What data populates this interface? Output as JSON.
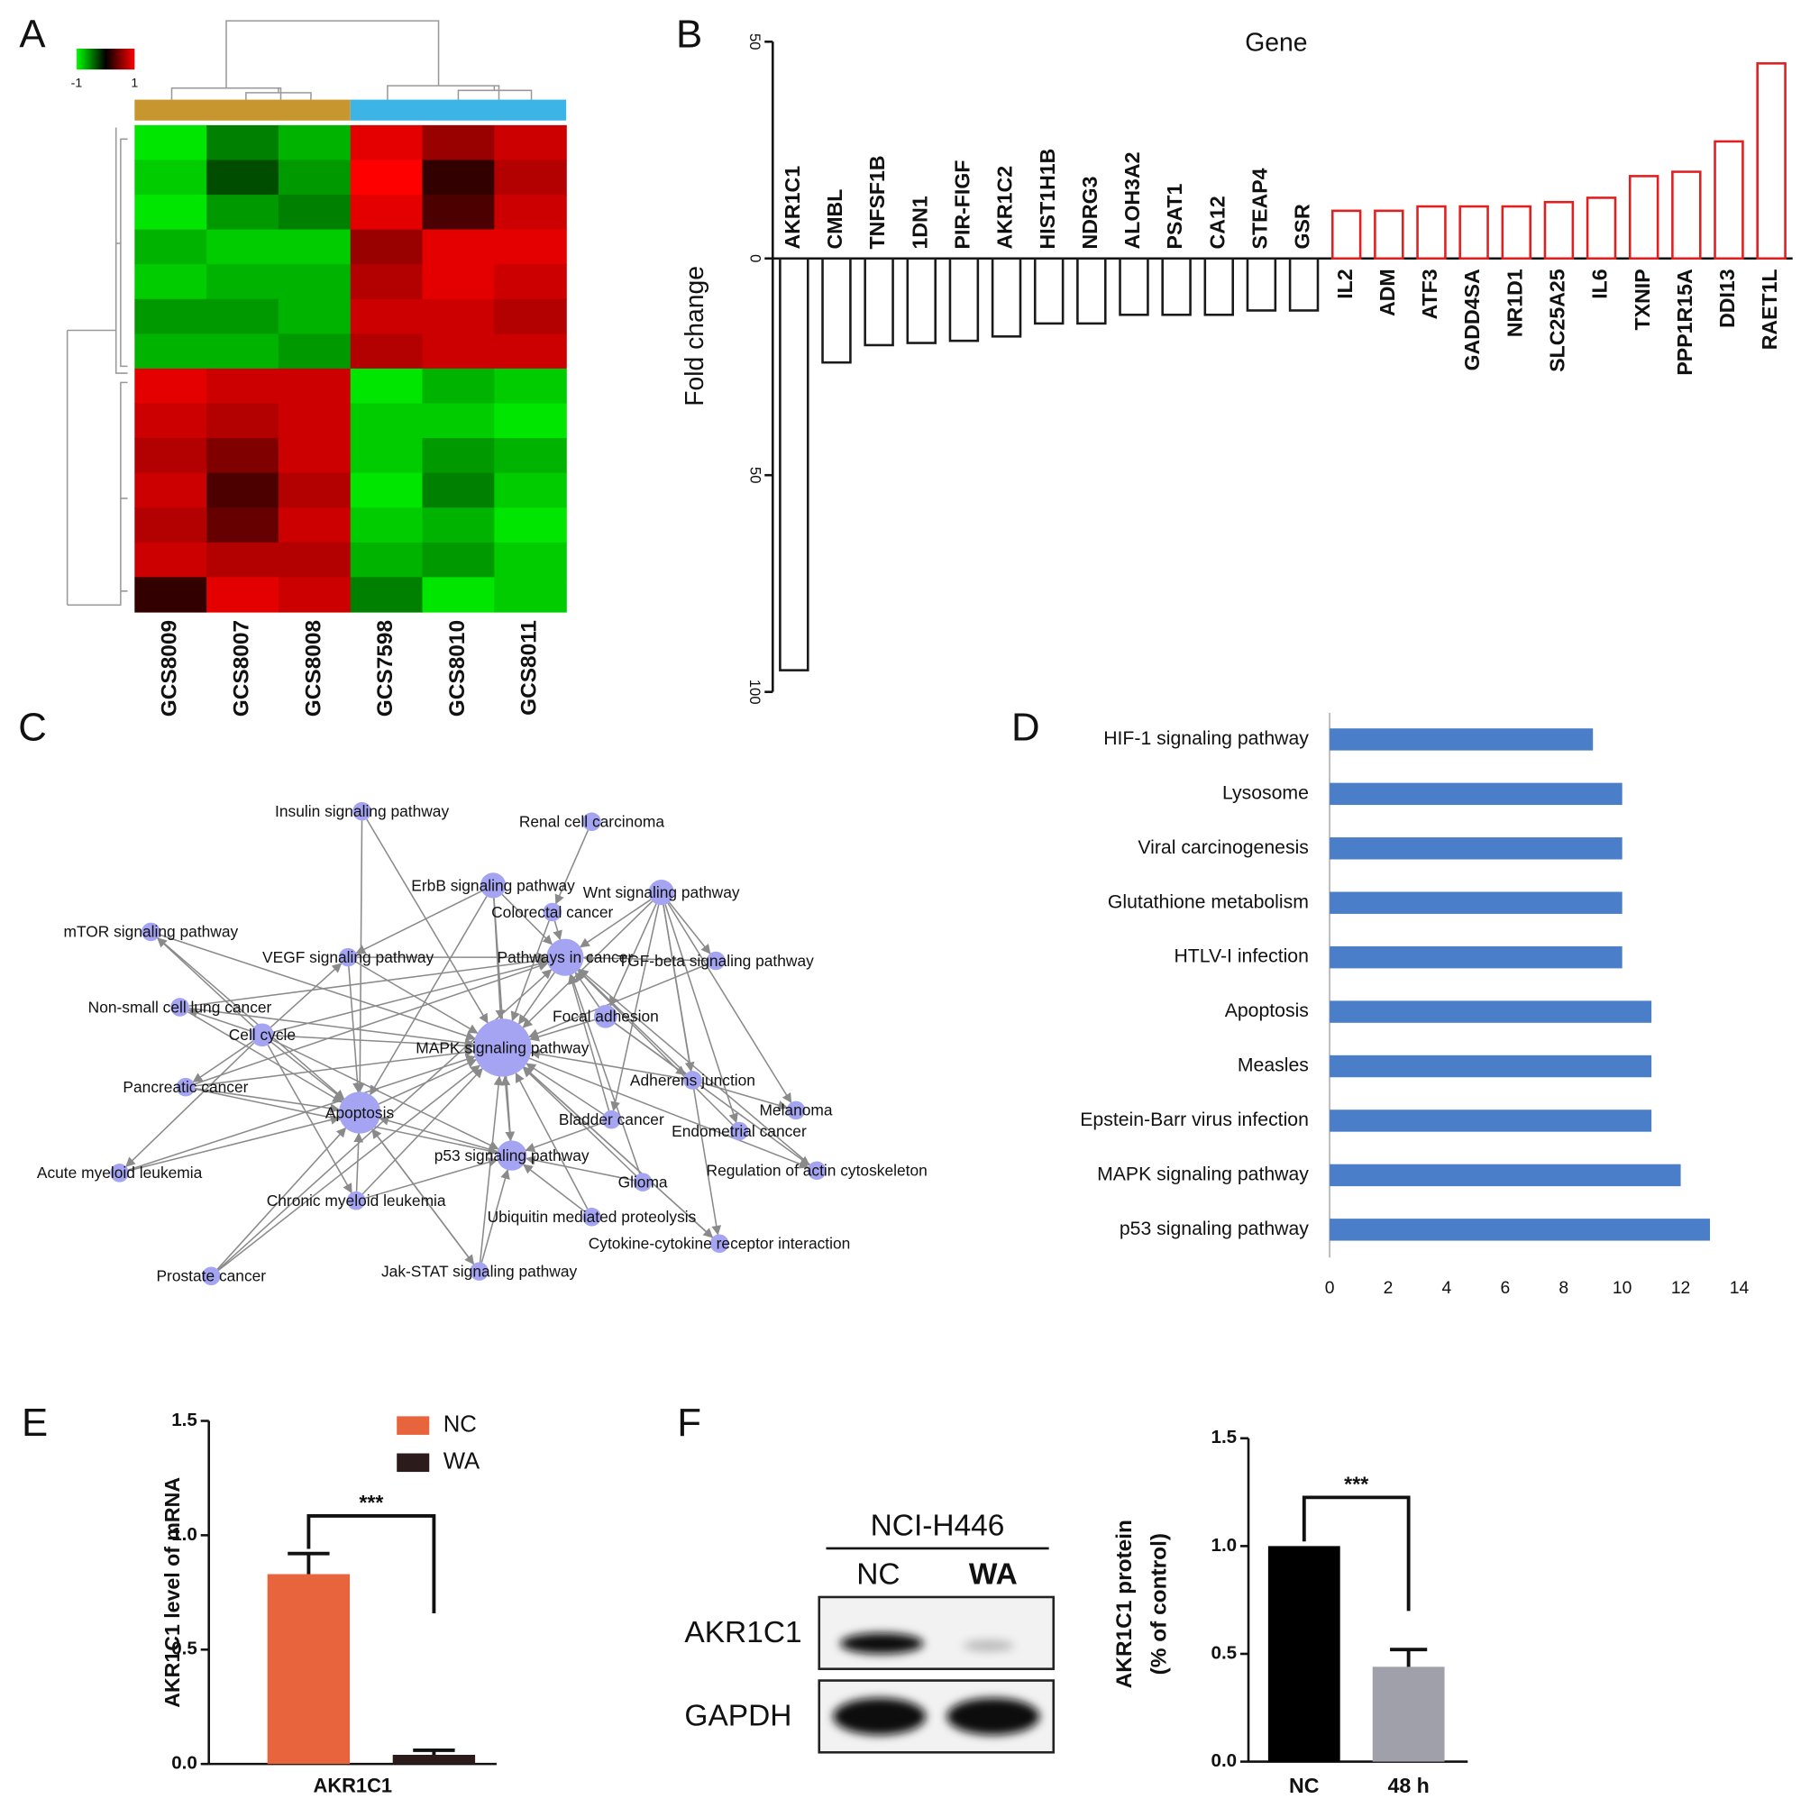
{
  "chart_data": [
    {
      "panel": "A",
      "type": "heatmap",
      "columns": [
        "GCS8009",
        "GCS8007",
        "GCS8008",
        "GCS7598",
        "GCS8010",
        "GCS8011"
      ],
      "values": [
        [
          -0.9,
          -0.5,
          -0.7,
          0.9,
          0.6,
          0.8
        ],
        [
          -0.8,
          -0.3,
          -0.6,
          1,
          0.2,
          0.7
        ],
        [
          -0.9,
          -0.6,
          -0.5,
          0.9,
          0.3,
          0.8
        ],
        [
          -0.7,
          -0.8,
          -0.8,
          0.6,
          0.9,
          0.9
        ],
        [
          -0.8,
          -0.7,
          -0.7,
          0.7,
          0.9,
          0.8
        ],
        [
          -0.6,
          -0.6,
          -0.7,
          0.8,
          0.8,
          0.7
        ],
        [
          -0.7,
          -0.7,
          -0.6,
          0.7,
          0.8,
          0.8
        ],
        [
          0.9,
          0.8,
          0.8,
          -0.9,
          -0.7,
          -0.8
        ],
        [
          0.8,
          0.7,
          0.8,
          -0.8,
          -0.8,
          -0.9
        ],
        [
          0.7,
          0.5,
          0.8,
          -0.8,
          -0.6,
          -0.7
        ],
        [
          0.8,
          0.3,
          0.7,
          -0.9,
          -0.5,
          -0.8
        ],
        [
          0.7,
          0.4,
          0.8,
          -0.8,
          -0.7,
          -0.9
        ],
        [
          0.8,
          0.7,
          0.7,
          -0.7,
          -0.6,
          -0.8
        ],
        [
          0.2,
          0.9,
          0.8,
          -0.5,
          -0.9,
          -0.8
        ]
      ],
      "clim": [
        -1,
        1
      ],
      "cticks": [
        -1,
        1
      ],
      "colors": [
        "#00ff00",
        "#000000",
        "#ff0000"
      ]
    },
    {
      "panel": "B",
      "type": "bar",
      "title": "Gene",
      "ylabel": "Fold change",
      "categories": [
        "AKR1C1",
        "CMBL",
        "TNFSF1B",
        "1DN1",
        "PIR-FIGF",
        "AKR1C2",
        "HIST1H1B",
        "NDRG3",
        "ALOH3A2",
        "PSAT1",
        "CA12",
        "STEAP4",
        "GSR",
        "IL2",
        "ADM",
        "ATF3",
        "GADD4SA",
        "NR1D1",
        "SLC25A25",
        "IL6",
        "TXNIP",
        "PPP1R15A",
        "DDI13",
        "RAET1L"
      ],
      "values": [
        -95,
        -24,
        -20,
        -19.5,
        -19,
        -18,
        -15,
        -15,
        -13,
        -13,
        -13,
        -12,
        -12,
        11,
        11,
        12,
        12,
        12,
        13,
        14,
        19,
        20,
        27,
        45
      ],
      "ylim": [
        -100,
        50
      ],
      "yticks": [
        {
          "value": -100,
          "label": "100"
        },
        {
          "value": -50,
          "label": "50"
        },
        0,
        50
      ],
      "negative_color": "#1a1a1a",
      "positive_color": "#e02020"
    },
    {
      "panel": "C",
      "type": "network",
      "nodes": [
        "Insulin signaling pathway",
        "Renal cell carcinoma",
        "ErbB signaling pathway",
        "Wnt signaling pathway",
        "Colorectal cancer",
        "mTOR signaling pathway",
        "VEGF signaling pathway",
        "Pathways in cancer",
        "TGF-beta signaling pathway",
        "Non-small cell lung cancer",
        "Focal adhesion",
        "Cell cycle",
        "MAPK signaling pathway",
        "Adherens junction",
        "Pancreatic cancer",
        "Apoptosis",
        "Melanoma",
        "Bladder cancer",
        "Endometrial cancer",
        "p53 signaling pathway",
        "Acute myeloid leukemia",
        "Glioma",
        "Regulation of actin cytoskeleton",
        "Chronic myeloid leukemia",
        "Ubiquitin mediated proteolysis",
        "Cytokine-cytokine receptor interaction",
        "Prostate cancer",
        "Jak-STAT signaling pathway"
      ]
    },
    {
      "panel": "D",
      "type": "hbar",
      "categories": [
        "HIF-1 signaling pathway",
        "Lysosome",
        "Viral carcinogenesis",
        "Glutathione metabolism",
        "HTLV-I infection",
        "Apoptosis",
        "Measles",
        "Epstein-Barr virus infection",
        "MAPK signaling pathway",
        "p53 signaling pathway"
      ],
      "values": [
        9,
        10,
        10,
        10,
        10,
        11,
        11,
        11,
        12,
        13
      ],
      "xlim": [
        0,
        14
      ],
      "xticks": [
        0,
        2,
        4,
        6,
        8,
        10,
        12,
        14
      ],
      "color": "#4a7ec8"
    },
    {
      "panel": "E",
      "type": "bar",
      "ylabel": "AKR1C1 level of mRNA",
      "categories": [
        "AKR1C1"
      ],
      "series": [
        {
          "name": "NC",
          "color": "#e8643c",
          "values": [
            0.83
          ],
          "errors": [
            0.09
          ]
        },
        {
          "name": "WA",
          "color": "#2b1b1b",
          "values": [
            0.04
          ],
          "errors": [
            0.02
          ]
        }
      ],
      "ylim": [
        0,
        1.5
      ],
      "yticks": [
        {
          "value": 0,
          "label": "0.0"
        },
        0.5,
        {
          "value": 1,
          "label": "1.0"
        },
        1.5
      ],
      "annotation": "***"
    },
    {
      "panel": "F",
      "type": "blot_bar",
      "blot": {
        "title": "NCI-H446",
        "lanes": [
          "NC",
          "WA"
        ],
        "rows": [
          "AKR1C1",
          "GAPDH"
        ]
      },
      "ylabel": [
        "AKR1C1 protein",
        "(% of control)"
      ],
      "categories": [
        "NC",
        "48 h"
      ],
      "values": [
        1.0,
        0.44
      ],
      "errors": [
        null,
        0.08
      ],
      "colors": [
        "#000000",
        "#a0a0aa"
      ],
      "ylim": [
        0,
        1.5
      ],
      "yticks": [
        {
          "value": 0,
          "label": "0.0"
        },
        0.5,
        {
          "value": 1,
          "label": "1.0"
        },
        1.5
      ],
      "annotation": "***"
    }
  ]
}
